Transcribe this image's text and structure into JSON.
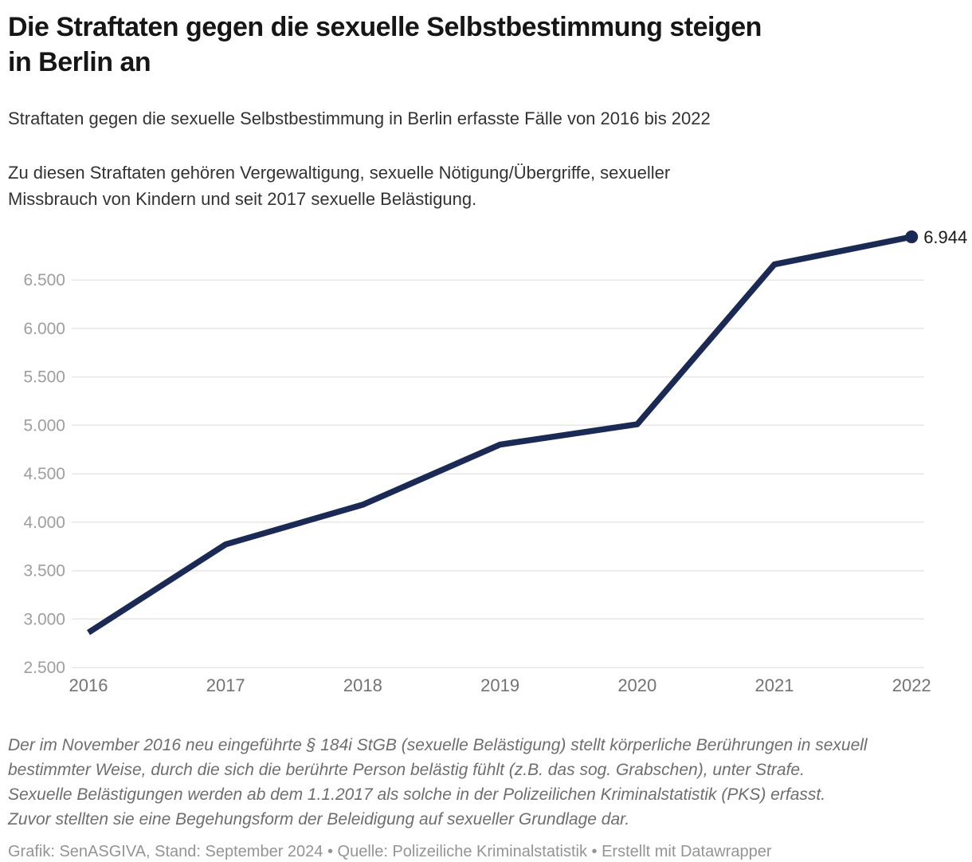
{
  "header": {
    "title_lines": [
      "Die Straftaten gegen die sexuelle Selbstbestimmung steigen",
      "in Berlin an"
    ],
    "subtitle": "Straftaten gegen die sexuelle Selbstbestimmung in Berlin erfasste Fälle von 2016 bis 2022",
    "description_lines": [
      "Zu diesen Straftaten gehören Vergewaltigung, sexuelle Nötigung/Übergriffe, sexueller",
      "Missbrauch von Kindern und seit 2017 sexuelle Belästigung."
    ]
  },
  "chart_data": {
    "type": "line",
    "title": "Die Straftaten gegen die sexuelle Selbstbestimmung steigen in Berlin an",
    "xlabel": "",
    "ylabel": "",
    "categories": [
      "2016",
      "2017",
      "2018",
      "2019",
      "2020",
      "2021",
      "2022"
    ],
    "values": [
      2860,
      3770,
      4180,
      4800,
      5010,
      6660,
      6944
    ],
    "end_point_label": "6.944",
    "y_ticks": [
      {
        "value": 2500,
        "label": "2.500"
      },
      {
        "value": 3000,
        "label": "3.000"
      },
      {
        "value": 3500,
        "label": "3.500"
      },
      {
        "value": 4000,
        "label": "4.000"
      },
      {
        "value": 4500,
        "label": "4.500"
      },
      {
        "value": 5000,
        "label": "5.000"
      },
      {
        "value": 5500,
        "label": "5.500"
      },
      {
        "value": 6000,
        "label": "6.000"
      },
      {
        "value": 6500,
        "label": "6.500"
      }
    ],
    "ylim": [
      2500,
      7050
    ],
    "grid": "horizontal",
    "legend": "none"
  },
  "colors": {
    "line": "#1b2a55",
    "marker": "#1b2a55",
    "grid": "#e7e7e7",
    "y_tick_text": "#9e9e9e",
    "x_tick_text": "#737373",
    "value_label": "#1a1a1a"
  },
  "footer": {
    "note_lines": [
      "Der im November 2016 neu eingeführte § 184i StGB (sexuelle Belästigung) stellt körperliche Berührungen in sexuell",
      "bestimmter Weise, durch die sich die berührte Person belästig fühlt (z.B. das sog. Grabschen), unter Strafe.",
      "Sexuelle Belästigungen werden ab dem 1.1.2017 als solche in der Polizeilichen Kriminalstatistik (PKS) erfasst.",
      "Zuvor stellten sie eine Begehungsform der Beleidigung auf sexueller Grundlage dar."
    ],
    "credits": "Grafik: SenASGIVA, Stand: September 2024 • Quelle: Polizeiliche Kriminalstatistik • Erstellt mit Datawrapper"
  }
}
